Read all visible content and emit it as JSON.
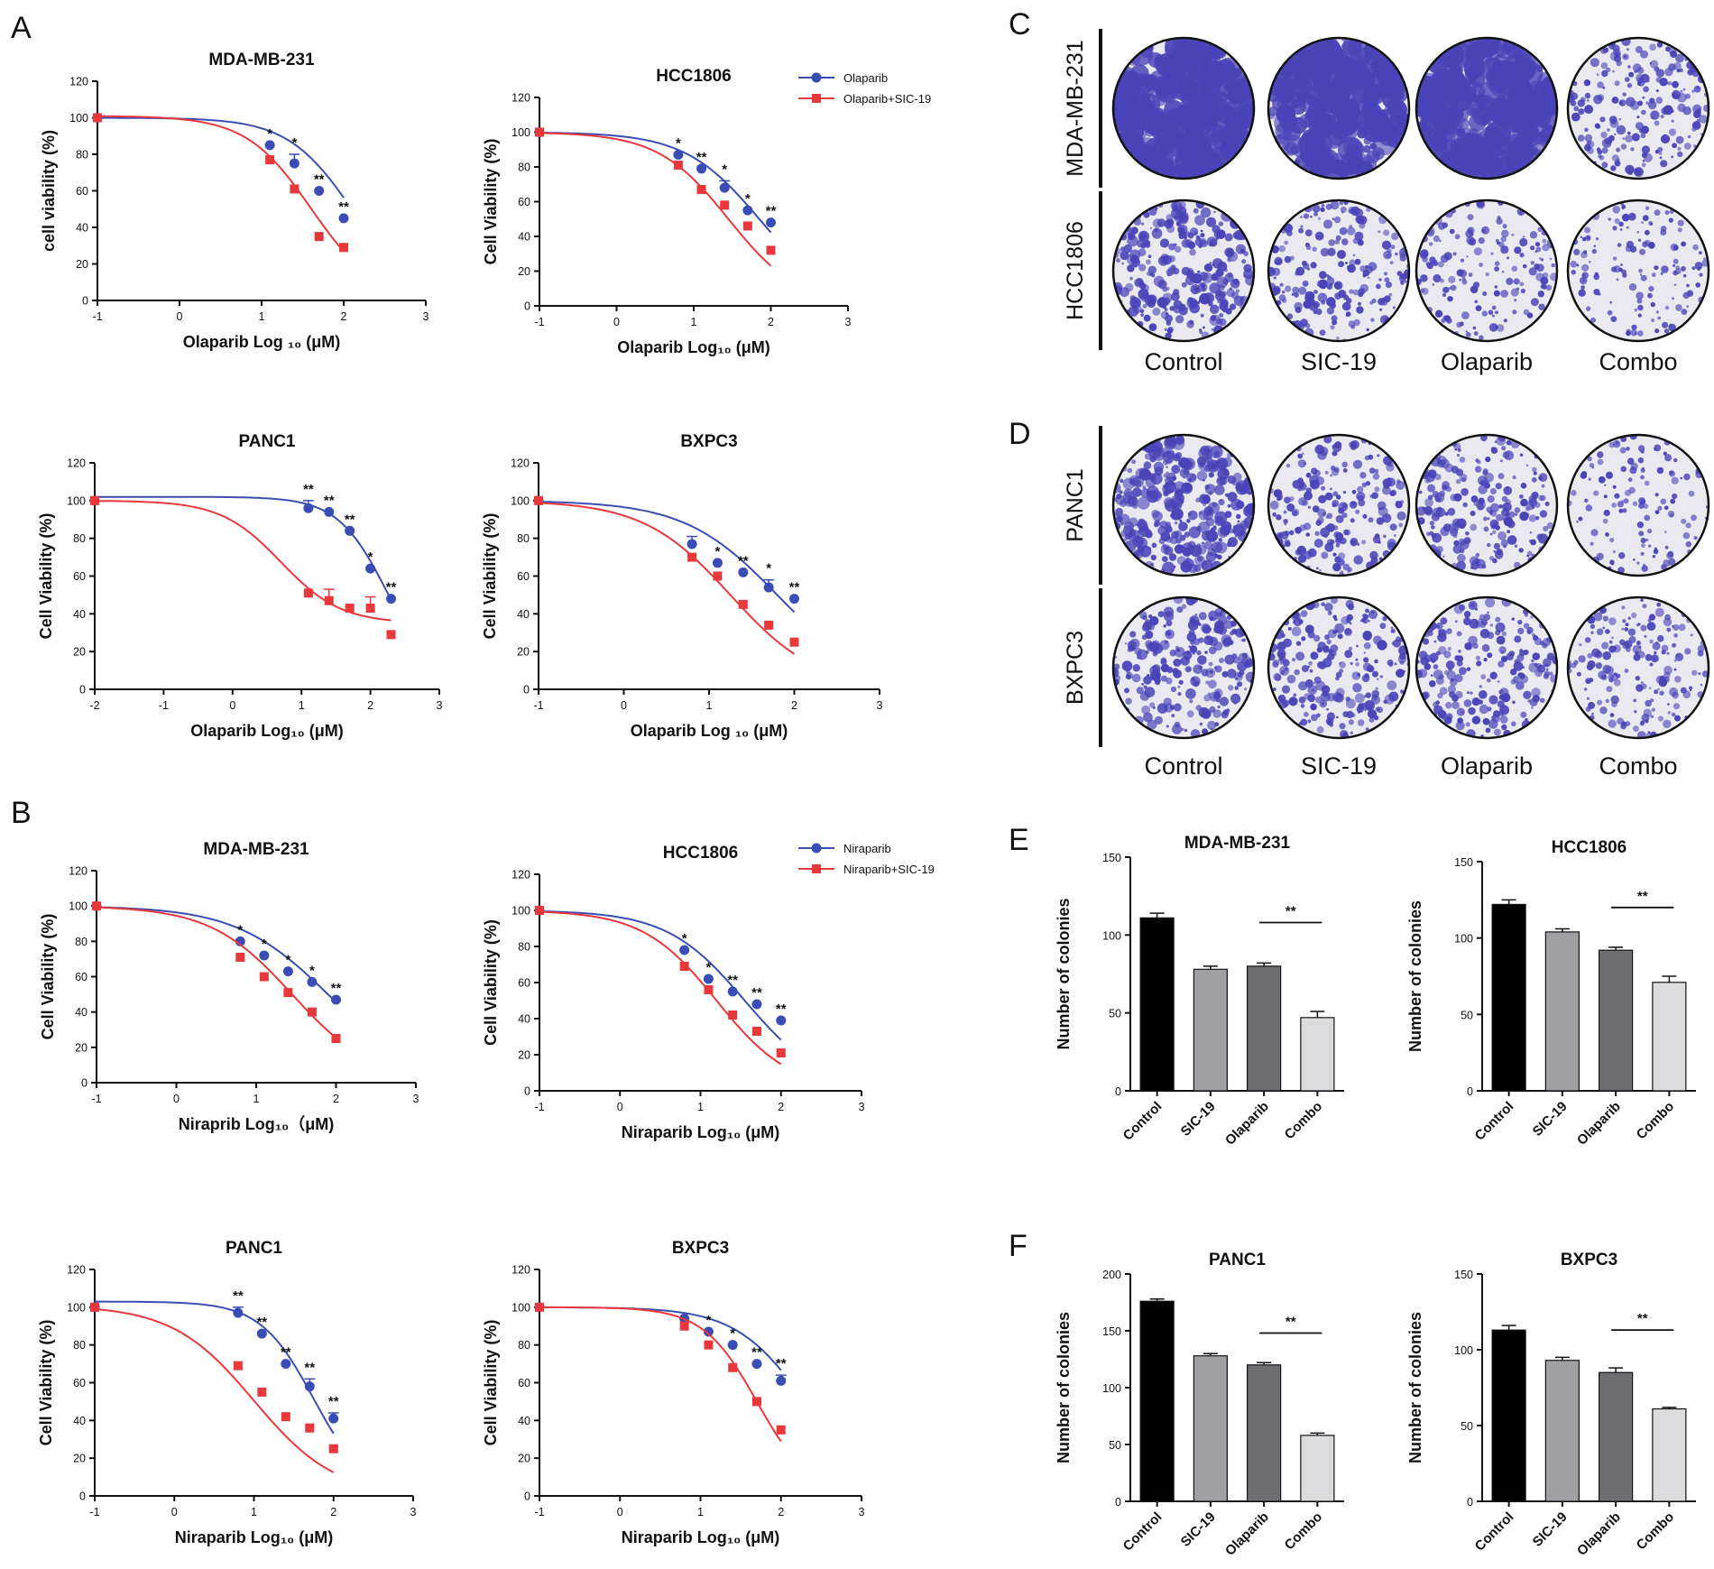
{
  "panel_labels": {
    "A": "A",
    "B": "B",
    "C": "C",
    "D": "D",
    "E": "E",
    "F": "F"
  },
  "colors": {
    "series1": "#3a4db5",
    "series2": "#e8383b",
    "bar_fills": [
      "#000000",
      "#a0a0a4",
      "#6e6e73",
      "#dcdcde"
    ],
    "crystal_violet": "#4a43b8"
  },
  "legends": {
    "olaparib": [
      "Olaparib",
      "Olaparib+SIC-19"
    ],
    "niraparib": [
      "Niraparib",
      "Niraparib+SIC-19"
    ]
  },
  "chart_data": [
    {
      "id": "A1",
      "type": "line",
      "title": "MDA-MB-231",
      "xlabel": "Olaparib Log ₁₀ (μM)",
      "ylabel": "cell viability (%)",
      "xlim": [
        -1,
        3
      ],
      "ylim": [
        0,
        120
      ],
      "xticks": [
        -1,
        0,
        1,
        2,
        3
      ],
      "yticks": [
        0,
        20,
        40,
        60,
        80,
        100,
        120
      ],
      "series": [
        {
          "name": "Olaparib",
          "x": [
            -1,
            1.1,
            1.4,
            1.7,
            2.0
          ],
          "y": [
            100,
            85,
            75,
            60,
            45
          ],
          "err": [
            0,
            0,
            5,
            0,
            0
          ],
          "sig": [
            "",
            "*",
            "*",
            "**",
            "**"
          ],
          "ic50": 2.1,
          "top": 100,
          "bottom": 0,
          "hill": 1.1
        },
        {
          "name": "Olaparib+SIC-19",
          "x": [
            -1,
            1.1,
            1.4,
            1.7,
            2.0
          ],
          "y": [
            100,
            77,
            61,
            35,
            29
          ],
          "err": [
            0,
            0,
            0,
            0,
            0
          ],
          "ic50": 1.6,
          "top": 101,
          "bottom": 0,
          "hill": 1.1
        }
      ]
    },
    {
      "id": "A2",
      "type": "line",
      "title": "HCC1806",
      "xlabel": "Olaparib Log₁₀ (μM)",
      "ylabel": "Cell Viability (%)",
      "xlim": [
        -1,
        3
      ],
      "ylim": [
        0,
        120
      ],
      "xticks": [
        -1,
        0,
        1,
        2,
        3
      ],
      "yticks": [
        0,
        20,
        40,
        60,
        80,
        100,
        120
      ],
      "series": [
        {
          "name": "Olaparib",
          "x": [
            -1,
            0.8,
            1.1,
            1.4,
            1.7,
            2.0
          ],
          "y": [
            100,
            87,
            79,
            68,
            55,
            48
          ],
          "err": [
            0,
            0,
            0,
            4,
            0,
            0
          ],
          "sig": [
            "",
            "*",
            "**",
            "*",
            "*",
            "**"
          ],
          "ic50": 1.85,
          "top": 100,
          "bottom": 0,
          "hill": 0.9
        },
        {
          "name": "Olaparib+SIC-19",
          "x": [
            -1,
            0.8,
            1.1,
            1.4,
            1.7,
            2.0
          ],
          "y": [
            100,
            81,
            67,
            58,
            46,
            32
          ],
          "err": [
            0,
            0,
            0,
            0,
            0,
            0
          ],
          "ic50": 1.45,
          "top": 100,
          "bottom": 0,
          "hill": 0.95
        }
      ]
    },
    {
      "id": "A3",
      "type": "line",
      "title": "PANC1",
      "xlabel": "Olaparib Log₁₀ (μM)",
      "ylabel": "Cell Viability (%)",
      "xlim": [
        -2,
        3
      ],
      "ylim": [
        0,
        120
      ],
      "xticks": [
        -2,
        -1,
        0,
        1,
        2,
        3
      ],
      "yticks": [
        0,
        20,
        40,
        60,
        80,
        100,
        120
      ],
      "series": [
        {
          "name": "Olaparib",
          "x": [
            -2,
            1.1,
            1.4,
            1.7,
            2.0,
            2.3
          ],
          "y": [
            100,
            96,
            94,
            84,
            64,
            48
          ],
          "err": [
            0,
            4,
            0,
            0,
            0,
            0
          ],
          "sig": [
            "",
            "**",
            "**",
            "**",
            "*",
            "**"
          ],
          "ic50": 2.25,
          "top": 102,
          "bottom": 0,
          "hill": 1.2
        },
        {
          "name": "Olaparib+SIC-19",
          "x": [
            -2,
            1.1,
            1.4,
            1.7,
            2.0,
            2.3
          ],
          "y": [
            100,
            51,
            47,
            43,
            43,
            29
          ],
          "err": [
            0,
            0,
            6,
            0,
            6,
            0
          ],
          "ic50": 0.7,
          "top": 100,
          "bottom": 35,
          "hill": 1.0
        }
      ]
    },
    {
      "id": "A4",
      "type": "line",
      "title": "BXPC3",
      "xlabel": "Olaparib Log ₁₀ (μM)",
      "ylabel": "Cell Viability (%)",
      "xlim": [
        -1,
        3
      ],
      "ylim": [
        0,
        120
      ],
      "xticks": [
        -1,
        0,
        1,
        2,
        3
      ],
      "yticks": [
        0,
        20,
        40,
        60,
        80,
        100,
        120
      ],
      "series": [
        {
          "name": "Olaparib",
          "x": [
            -1,
            0.8,
            1.1,
            1.4,
            1.7,
            2.0
          ],
          "y": [
            100,
            77,
            67,
            62,
            54,
            48
          ],
          "err": [
            0,
            4,
            0,
            0,
            4,
            0
          ],
          "sig": [
            "",
            "",
            "*",
            "**",
            "*",
            "**"
          ],
          "ic50": 1.8,
          "top": 100,
          "bottom": 0,
          "hill": 0.8
        },
        {
          "name": "Olaparib+SIC-19",
          "x": [
            -1,
            0.8,
            1.1,
            1.4,
            1.7,
            2.0
          ],
          "y": [
            100,
            70,
            60,
            45,
            34,
            25
          ],
          "err": [
            0,
            0,
            0,
            0,
            0,
            0
          ],
          "ic50": 1.25,
          "top": 100,
          "bottom": 0,
          "hill": 0.85
        }
      ]
    },
    {
      "id": "B1",
      "type": "line",
      "title": "MDA-MB-231",
      "xlabel": "Niraprib Log₁₀（μM)",
      "ylabel": "Cell Viability (%)",
      "xlim": [
        -1,
        3
      ],
      "ylim": [
        0,
        120
      ],
      "xticks": [
        -1,
        0,
        1,
        2,
        3
      ],
      "yticks": [
        0,
        20,
        40,
        60,
        80,
        100,
        120
      ],
      "series": [
        {
          "name": "Niraparib",
          "x": [
            -1,
            0.8,
            1.1,
            1.4,
            1.7,
            2.0
          ],
          "y": [
            100,
            80,
            72,
            63,
            57,
            47
          ],
          "err": [
            0,
            0,
            0,
            0,
            0,
            0
          ],
          "sig": [
            "",
            "*",
            "*",
            "*",
            "*",
            "**"
          ],
          "ic50": 1.9,
          "top": 100,
          "bottom": 0,
          "hill": 0.75
        },
        {
          "name": "Niraparib+SIC-19",
          "x": [
            -1,
            0.8,
            1.1,
            1.4,
            1.7,
            2.0
          ],
          "y": [
            100,
            71,
            60,
            51,
            40,
            25
          ],
          "err": [
            0,
            0,
            0,
            0,
            0,
            0
          ],
          "ic50": 1.45,
          "top": 100,
          "bottom": 0,
          "hill": 0.85
        }
      ]
    },
    {
      "id": "B2",
      "type": "line",
      "title": "HCC1806",
      "xlabel": "Niraparib Log₁₀ (μM)",
      "ylabel": "Cell Viability (%)",
      "xlim": [
        -1,
        3
      ],
      "ylim": [
        0,
        120
      ],
      "xticks": [
        -1,
        0,
        1,
        2,
        3
      ],
      "yticks": [
        0,
        20,
        40,
        60,
        80,
        100,
        120
      ],
      "series": [
        {
          "name": "Niraparib",
          "x": [
            -1,
            0.8,
            1.1,
            1.4,
            1.7,
            2.0
          ],
          "y": [
            100,
            78,
            62,
            55,
            48,
            39
          ],
          "err": [
            0,
            0,
            0,
            0,
            0,
            0
          ],
          "sig": [
            "",
            "*",
            "*",
            "**",
            "**",
            "**"
          ],
          "ic50": 1.55,
          "top": 100,
          "bottom": 0,
          "hill": 0.9
        },
        {
          "name": "Niraparib+SIC-19",
          "x": [
            -1,
            0.8,
            1.1,
            1.4,
            1.7,
            2.0
          ],
          "y": [
            100,
            69,
            56,
            42,
            33,
            21
          ],
          "err": [
            0,
            0,
            0,
            0,
            0,
            0
          ],
          "ic50": 1.2,
          "top": 100,
          "bottom": 0,
          "hill": 0.95
        }
      ]
    },
    {
      "id": "B3",
      "type": "line",
      "title": "PANC1",
      "xlabel": "Niraparib Log₁₀ (μM)",
      "ylabel": "Cell Viability (%)",
      "xlim": [
        -1,
        3
      ],
      "ylim": [
        0,
        120
      ],
      "xticks": [
        -1,
        0,
        1,
        2,
        3
      ],
      "yticks": [
        0,
        20,
        40,
        60,
        80,
        100,
        120
      ],
      "series": [
        {
          "name": "Niraparib",
          "x": [
            -1,
            0.8,
            1.1,
            1.4,
            1.7,
            2.0
          ],
          "y": [
            100,
            97,
            86,
            70,
            58,
            41
          ],
          "err": [
            0,
            3,
            0,
            0,
            4,
            3
          ],
          "sig": [
            "",
            "**",
            "**",
            "**",
            "**",
            "**"
          ],
          "ic50": 1.75,
          "top": 103,
          "bottom": 0,
          "hill": 1.3
        },
        {
          "name": "Niraparib+SIC-19",
          "x": [
            -1,
            0.8,
            1.1,
            1.4,
            1.7,
            2.0
          ],
          "y": [
            100,
            69,
            55,
            42,
            36,
            25
          ],
          "err": [
            0,
            0,
            0,
            0,
            0,
            0
          ],
          "ic50": 1.0,
          "top": 101,
          "bottom": 0,
          "hill": 0.85
        }
      ]
    },
    {
      "id": "B4",
      "type": "line",
      "title": "BXPC3",
      "xlabel": "Niraparib Log₁₀ (μM)",
      "ylabel": "Cell Viability (%)",
      "xlim": [
        -1,
        3
      ],
      "ylim": [
        0,
        120
      ],
      "xticks": [
        -1,
        0,
        1,
        2,
        3
      ],
      "yticks": [
        0,
        20,
        40,
        60,
        80,
        100,
        120
      ],
      "series": [
        {
          "name": "Niraparib",
          "x": [
            -1,
            0.8,
            1.1,
            1.4,
            1.7,
            2.0
          ],
          "y": [
            100,
            94,
            87,
            80,
            70,
            61
          ],
          "err": [
            0,
            0,
            0,
            0,
            0,
            3
          ],
          "sig": [
            "",
            "",
            "*",
            "*",
            "**",
            "**"
          ],
          "ic50": 2.3,
          "top": 100,
          "bottom": 0,
          "hill": 1.0
        },
        {
          "name": "Niraparib+SIC-19",
          "x": [
            -1,
            0.8,
            1.1,
            1.4,
            1.7,
            2.0
          ],
          "y": [
            100,
            90,
            80,
            68,
            50,
            35
          ],
          "err": [
            0,
            0,
            0,
            0,
            0,
            0
          ],
          "ic50": 1.7,
          "top": 100,
          "bottom": 0,
          "hill": 1.3
        }
      ]
    },
    {
      "id": "E1",
      "type": "bar",
      "title": "MDA-MB-231",
      "ylabel": "Number of colonies",
      "categories": [
        "Control",
        "SIC-19",
        "Olaparib",
        "Combo"
      ],
      "values": [
        111,
        78,
        80,
        47
      ],
      "err": [
        3,
        2,
        2,
        4
      ],
      "ylim": [
        0,
        150
      ],
      "yticks": [
        0,
        50,
        100,
        150
      ],
      "sig": "**"
    },
    {
      "id": "E2",
      "type": "bar",
      "title": "HCC1806",
      "ylabel": "Number of colonies",
      "categories": [
        "Control",
        "SIC-19",
        "Olaparib",
        "Combo"
      ],
      "values": [
        122,
        104,
        92,
        71
      ],
      "err": [
        3,
        2,
        2,
        4
      ],
      "ylim": [
        0,
        150
      ],
      "yticks": [
        0,
        50,
        100,
        150
      ],
      "sig": "**"
    },
    {
      "id": "F1",
      "type": "bar",
      "title": "PANC1",
      "ylabel": "Number of colonies",
      "categories": [
        "Control",
        "SIC-19",
        "Olaparib",
        "Combo"
      ],
      "values": [
        176,
        128,
        120,
        58
      ],
      "err": [
        2,
        2,
        2,
        2
      ],
      "ylim": [
        0,
        200
      ],
      "yticks": [
        0,
        50,
        100,
        150,
        200
      ],
      "sig": "**"
    },
    {
      "id": "F2",
      "type": "bar",
      "title": "BXPC3",
      "ylabel": "Number of colonies",
      "categories": [
        "Control",
        "SIC-19",
        "Olaparib",
        "Combo"
      ],
      "values": [
        113,
        93,
        85,
        61
      ],
      "err": [
        3,
        2,
        3,
        1
      ],
      "ylim": [
        0,
        150
      ],
      "yticks": [
        0,
        50,
        100,
        150
      ],
      "sig": "**"
    }
  ],
  "colony_panels": {
    "C": {
      "rows": [
        "MDA-MB-231",
        "HCC1806"
      ],
      "cols": [
        "Control",
        "SIC-19",
        "Olaparib",
        "Combo"
      ],
      "density": [
        [
          1.0,
          0.85,
          0.9,
          0.55
        ],
        [
          0.8,
          0.55,
          0.4,
          0.3
        ]
      ]
    },
    "D": {
      "rows": [
        "PANC1",
        "BXPC3"
      ],
      "cols": [
        "Control",
        "SIC-19",
        "Olaparib",
        "Combo"
      ],
      "density": [
        [
          1.0,
          0.55,
          0.6,
          0.25
        ],
        [
          0.7,
          0.65,
          0.6,
          0.45
        ]
      ]
    }
  }
}
